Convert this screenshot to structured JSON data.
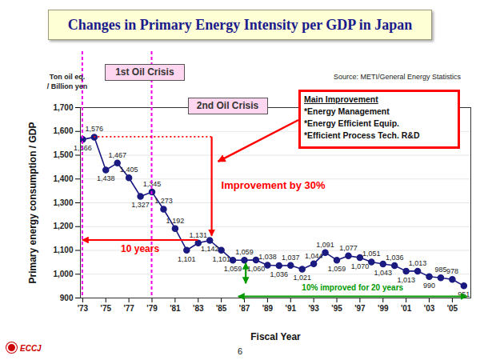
{
  "chart_data": {
    "type": "line",
    "title": "Changes in Primary Energy Intensity per GDP in Japan",
    "source": "Source: METI/General Energy Statistics",
    "y_unit": [
      "Ton oil eq.",
      "/ Billion yen"
    ],
    "x_label": "Fiscal Year",
    "y_label": "Primary energy consumption / GDP",
    "x": [
      1973,
      1974,
      1975,
      1976,
      1977,
      1978,
      1979,
      1980,
      1981,
      1982,
      1983,
      1984,
      1985,
      1986,
      1987,
      1988,
      1989,
      1990,
      1991,
      1992,
      1993,
      1994,
      1995,
      1996,
      1997,
      1998,
      1999,
      2000,
      2001,
      2002,
      2003,
      2004,
      2005,
      2006
    ],
    "values": [
      1566,
      1576,
      1438,
      1467,
      1405,
      1327,
      1345,
      1273,
      1192,
      1101,
      1131,
      1142,
      1101,
      1059,
      1059,
      1060,
      1038,
      1036,
      1037,
      1021,
      1044,
      1091,
      1059,
      1077,
      1070,
      1051,
      1043,
      1036,
      1013,
      1013,
      990,
      985,
      978,
      951
    ],
    "value_labels": [
      "1,566",
      "1,576",
      "1,438",
      "1,467",
      "1,405",
      "1,327",
      "1,345",
      "1,273",
      "1,192",
      "1,101",
      "1,131",
      "1,142",
      "1,101",
      "1,059",
      "1,059",
      "1,060",
      "1,038",
      "1,036",
      "1,037",
      "1,021",
      "1,044",
      "1,091",
      "1,059",
      "1,077",
      "1,070",
      "1,051",
      "1,043",
      "1,036",
      "1,013",
      "1,013",
      "990",
      "985",
      "978",
      "951"
    ],
    "color": "#1a1a80",
    "marker": "circle",
    "data_labels": true,
    "grid": true,
    "xlim": [
      1972.8,
      2006.6
    ],
    "xticks": [
      {
        "value": 1973,
        "label": "'73"
      },
      {
        "value": 1975,
        "label": "'75"
      },
      {
        "value": 1977,
        "label": "'77"
      },
      {
        "value": 1979,
        "label": "'79"
      },
      {
        "value": 1981,
        "label": "'81"
      },
      {
        "value": 1983,
        "label": "'83"
      },
      {
        "value": 1985,
        "label": "'85"
      },
      {
        "value": 1987,
        "label": "'87"
      },
      {
        "value": 1989,
        "label": "'89"
      },
      {
        "value": 1991,
        "label": "'91"
      },
      {
        "value": 1993,
        "label": "'93"
      },
      {
        "value": 1995,
        "label": "'95"
      },
      {
        "value": 1997,
        "label": "'97"
      },
      {
        "value": 1999,
        "label": "'99"
      },
      {
        "value": 2001,
        "label": "'01"
      },
      {
        "value": 2003,
        "label": "'03"
      },
      {
        "value": 2005,
        "label": "'05"
      }
    ],
    "ylim": [
      900,
      1700
    ],
    "yticks": [
      900,
      {
        "value": 1000,
        "label": "1,000"
      },
      {
        "value": 1100,
        "label": "1,100"
      },
      {
        "value": 1200,
        "label": "1,200"
      },
      {
        "value": 1300,
        "label": "1,300"
      },
      {
        "value": 1400,
        "label": "1,400"
      },
      {
        "value": 1500,
        "label": "1,500"
      },
      {
        "value": 1600,
        "label": "1,600"
      },
      {
        "value": 1700,
        "label": "1,700"
      }
    ],
    "events": [
      {
        "label": "1st Oil Crisis",
        "x": 1973,
        "color": "#ee00ee",
        "line_style": "dashed"
      },
      {
        "label": "2nd Oil Crisis",
        "x": 1979,
        "color": "#ee00ee",
        "line_style": "dashed"
      }
    ],
    "improvement_box": {
      "title": "Main Improvement",
      "items": [
        "*Energy Management",
        "*Energy Efficient Equip.",
        "*Efficient Process Tech. R&D"
      ]
    },
    "annotations": [
      {
        "text": "Improvement by 30%",
        "color": "#ff0000",
        "arrows": [
          {
            "x": [
              1974,
              1984.2
            ],
            "y": [
              1576,
              1576
            ],
            "line_style": "dotted"
          },
          {
            "x": [
              1984.2,
              1984.2
            ],
            "y": [
              1576,
              1160
            ],
            "marker": "arrow"
          }
        ]
      },
      {
        "text": "10 years",
        "color": "#ff0000",
        "arrows": [
          {
            "x": [
              1983,
              1973
            ],
            "y": [
              1142,
              1142
            ],
            "marker": "arrow"
          }
        ]
      },
      {
        "text": "10% improved for 20 years",
        "color": "#009900",
        "arrows": [
          {
            "x": [
              1986.5,
              2006.3
            ],
            "y": [
              905,
              905
            ],
            "marker": "double_arrow"
          },
          {
            "x": [
              1987.15,
              1987.15
            ],
            "y": [
              1045,
              960
            ],
            "marker": "double_arrow"
          }
        ]
      }
    ],
    "footer": {
      "page": "6",
      "logo": "ECCJ"
    }
  }
}
